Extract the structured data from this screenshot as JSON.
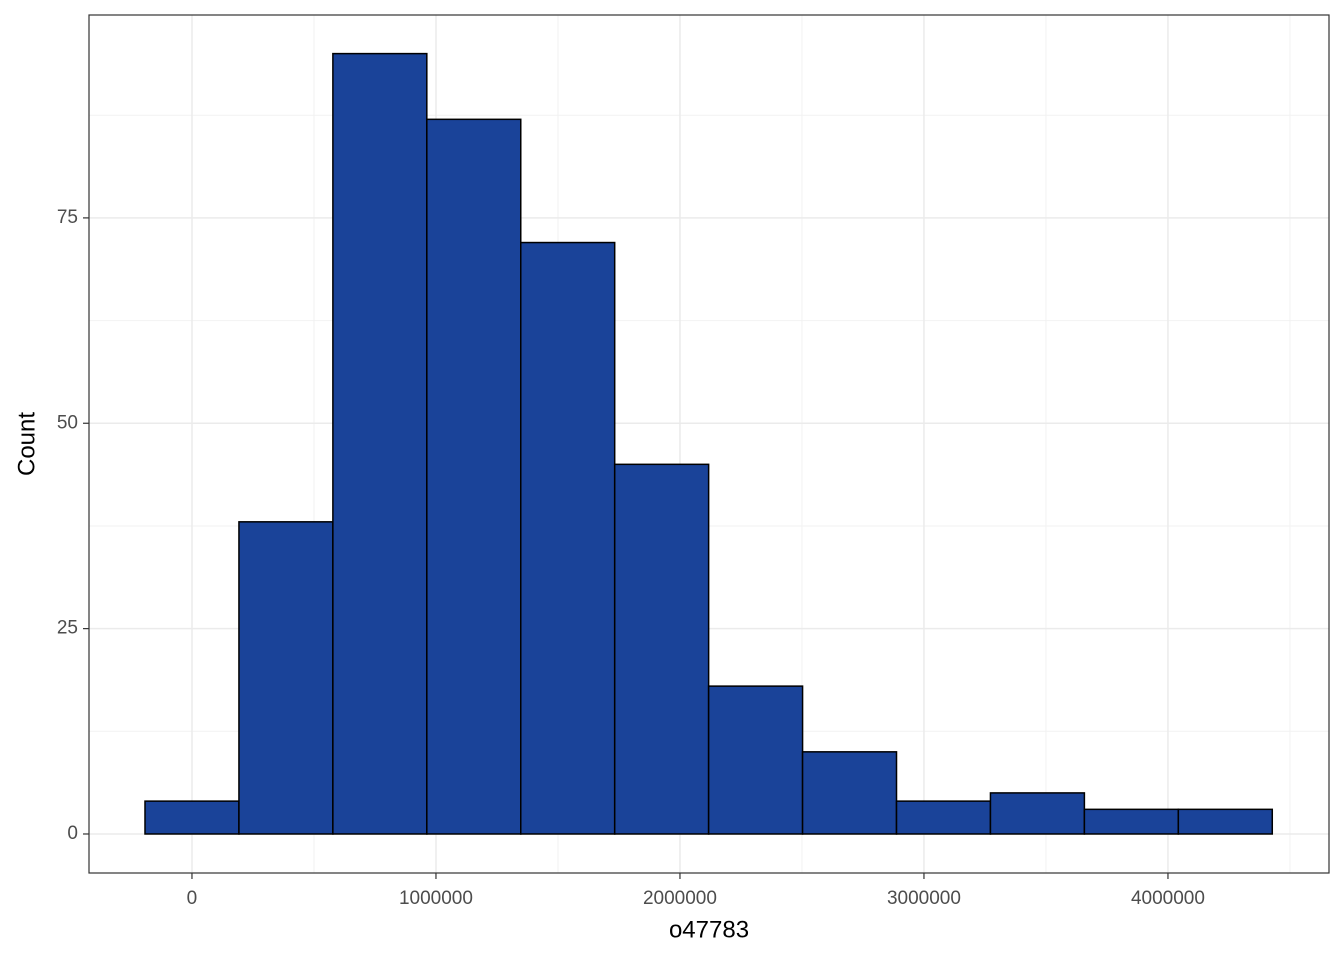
{
  "chart_data": {
    "type": "histogram",
    "x_label": "o47783",
    "y_label": "Count",
    "bins": [
      -192500,
      192500,
      577500,
      962500,
      1347500,
      1732500,
      2117500,
      2502500,
      2887500,
      3272500,
      3657500,
      4042500,
      4427500
    ],
    "values": [
      4,
      38,
      95,
      87,
      72,
      45,
      18,
      10,
      4,
      5,
      3,
      3
    ],
    "color": "#1a4399",
    "edge_color": "#000000",
    "xlim": [
      -422000,
      4660000
    ],
    "ylim": [
      -4.75,
      99.7
    ],
    "xticks": [
      0,
      1000000,
      2000000,
      3000000,
      4000000
    ],
    "yticks": [
      0,
      25,
      50,
      75
    ],
    "grid": true
  }
}
